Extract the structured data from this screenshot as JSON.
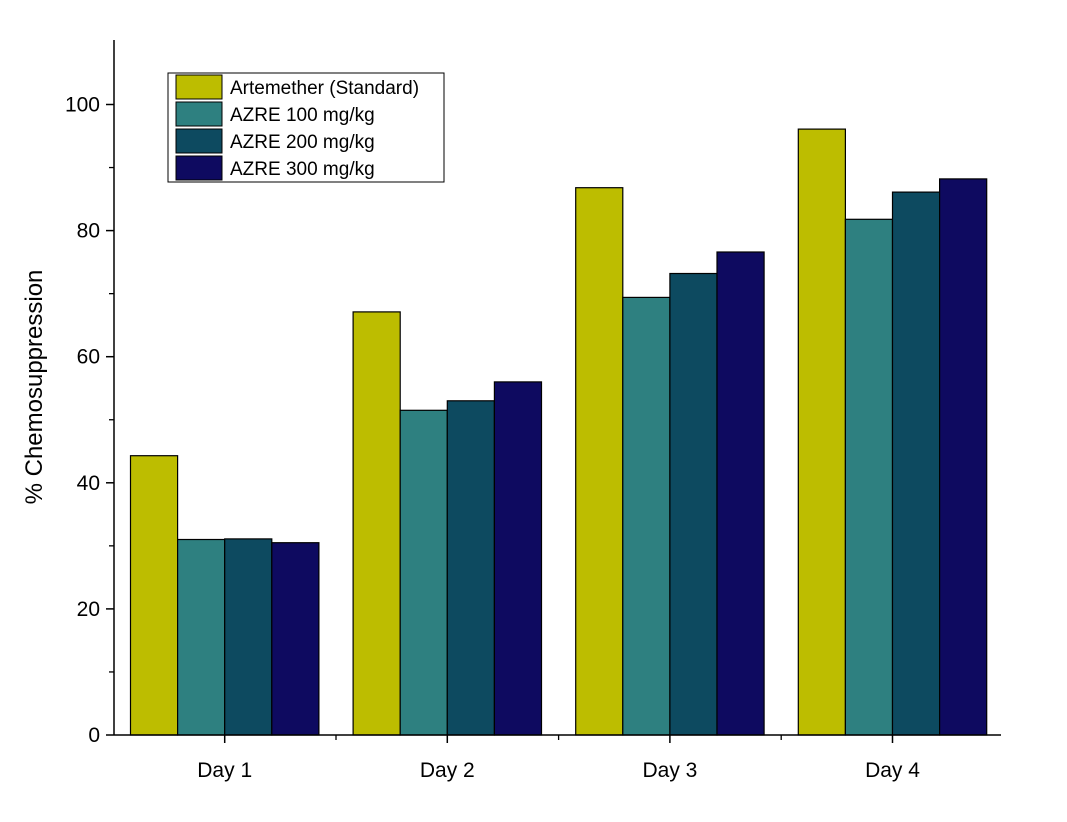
{
  "chart_data": {
    "type": "bar",
    "title": "",
    "xlabel": "",
    "ylabel": "% Chemosuppression",
    "categories": [
      "Day 1",
      "Day 2",
      "Day 3",
      "Day 4"
    ],
    "ylim": [
      0,
      110
    ],
    "yticks": [
      0,
      20,
      40,
      60,
      80,
      100
    ],
    "grid": false,
    "legend_position": "top-left",
    "series": [
      {
        "name": "Artemether (Standard)",
        "color": "#BDBD00",
        "values": [
          44.3,
          67.1,
          86.8,
          96.1
        ]
      },
      {
        "name": "AZRE 100 mg/kg",
        "color": "#2E8080",
        "values": [
          31.0,
          51.5,
          69.4,
          81.8
        ]
      },
      {
        "name": "AZRE 200 mg/kg",
        "color": "#0D4A60",
        "values": [
          31.1,
          53.0,
          73.2,
          86.1
        ]
      },
      {
        "name": "AZRE 300 mg/kg",
        "color": "#0E0A60",
        "values": [
          30.5,
          56.0,
          76.6,
          88.2
        ]
      }
    ]
  }
}
